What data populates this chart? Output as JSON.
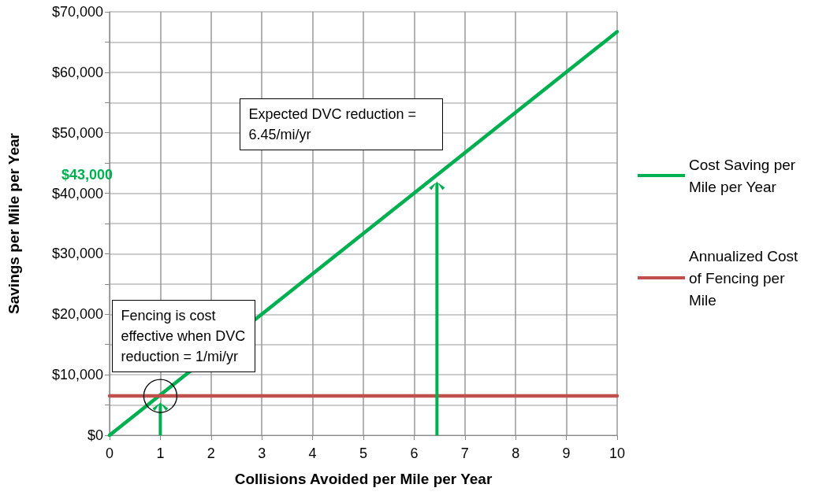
{
  "chart_data": {
    "type": "line",
    "xlabel": "Collisions Avoided per Mile per Year",
    "ylabel": "Savings per Mile per Year",
    "xlim": [
      0,
      10
    ],
    "xticks": [
      0,
      1,
      2,
      3,
      4,
      5,
      6,
      7,
      8,
      9,
      10
    ],
    "ylim": [
      0,
      70000
    ],
    "yticks": [
      {
        "value": 0,
        "label": "$0"
      },
      {
        "value": 5000,
        "label": null
      },
      {
        "value": 10000,
        "label": "$10,000"
      },
      {
        "value": 15000,
        "label": null
      },
      {
        "value": 20000,
        "label": "$20,000"
      },
      {
        "value": 25000,
        "label": null
      },
      {
        "value": 30000,
        "label": "$30,000"
      },
      {
        "value": 35000,
        "label": null
      },
      {
        "value": 40000,
        "label": "$40,000"
      },
      {
        "value": 45000,
        "label": null
      },
      {
        "value": 50000,
        "label": "$50,000"
      },
      {
        "value": 55000,
        "label": null
      },
      {
        "value": 60000,
        "label": "$60,000"
      },
      {
        "value": 65000,
        "label": null
      },
      {
        "value": 70000,
        "label": "$70,000"
      }
    ],
    "x": [
      0,
      10
    ],
    "series": [
      {
        "name": "Cost Saving per Mile per Year",
        "color": "#00b050",
        "values": [
          0,
          66700
        ]
      },
      {
        "name": "Annualized Cost of Fencing per Mile",
        "color": "#c0504d",
        "values": [
          6500,
          6500
        ]
      }
    ],
    "annotations": [
      {
        "text": "Fencing is cost effective when DVC reduction = 1/mi/yr",
        "x": 1,
        "y": 6500
      },
      {
        "text": "Expected DVC reduction = 6.45/mi/yr",
        "x": 6.45,
        "y": 43000
      },
      "$43,000"
    ],
    "grid": true,
    "legend": "right",
    "marker": "none",
    "line_style": "solid"
  }
}
